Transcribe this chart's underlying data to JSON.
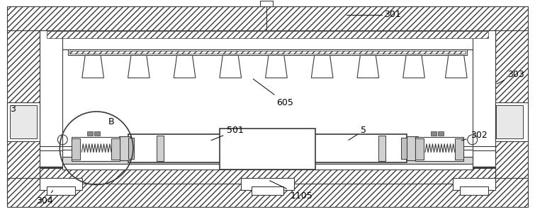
{
  "bg_color": "#ffffff",
  "lc": "#3a3a3a",
  "figsize": [
    7.55,
    3.03
  ],
  "dpi": 100,
  "lw": 0.8,
  "lw2": 1.2
}
